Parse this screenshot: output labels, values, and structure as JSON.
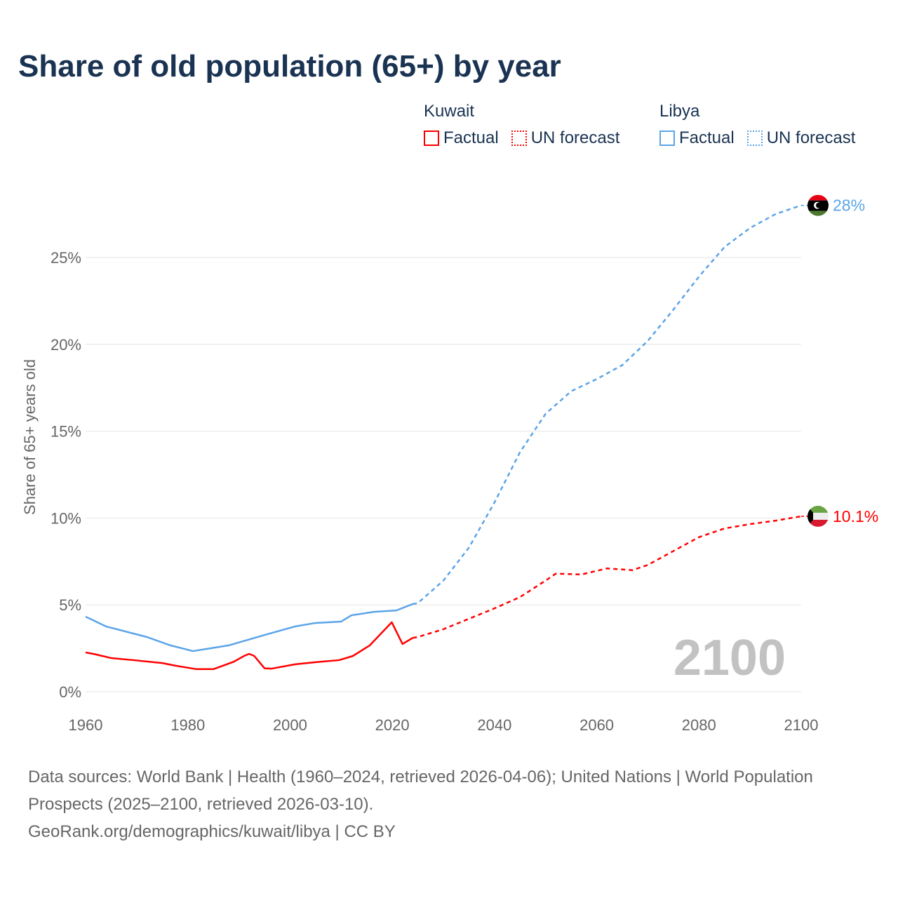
{
  "chart_data": {
    "type": "line",
    "title": "Share of old population (65+) by year",
    "ylabel": "Share of 65+ years old",
    "xlabel": "",
    "xlim": [
      1960,
      2100
    ],
    "ylim": [
      0,
      28
    ],
    "x_ticks": [
      "1960",
      "1980",
      "2000",
      "2020",
      "2040",
      "2060",
      "2080",
      "2100"
    ],
    "y_ticks": [
      "0%",
      "5%",
      "10%",
      "15%",
      "20%",
      "25%"
    ],
    "grid": true,
    "year_label": "2100",
    "legend": {
      "groups": [
        {
          "name": "Kuwait",
          "items": [
            "Factual",
            "UN forecast"
          ]
        },
        {
          "name": "Libya",
          "items": [
            "Factual",
            "UN forecast"
          ]
        }
      ],
      "placement": "top-right"
    },
    "series": [
      {
        "name": "Kuwait",
        "color": "#ff0000",
        "end_label": "10.1%",
        "factual": [
          [
            1960,
            2.26
          ],
          [
            1961.5,
            2.18
          ],
          [
            1965,
            1.94
          ],
          [
            1969,
            1.83
          ],
          [
            1975,
            1.65
          ],
          [
            1977.6,
            1.5
          ],
          [
            1981.7,
            1.3
          ],
          [
            1985,
            1.3
          ],
          [
            1989,
            1.73
          ],
          [
            1991,
            2.06
          ],
          [
            1992,
            2.18
          ],
          [
            1993,
            2.06
          ],
          [
            1995,
            1.35
          ],
          [
            1996.4,
            1.33
          ],
          [
            2001,
            1.58
          ],
          [
            2005,
            1.7
          ],
          [
            2009.6,
            1.82
          ],
          [
            2012.3,
            2.06
          ],
          [
            2015.6,
            2.67
          ],
          [
            2019.9,
            4.0
          ],
          [
            2022,
            2.75
          ],
          [
            2024,
            3.1
          ]
        ],
        "forecast": [
          [
            2024,
            3.1
          ],
          [
            2025,
            3.15
          ],
          [
            2030,
            3.6
          ],
          [
            2035,
            4.2
          ],
          [
            2040,
            4.8
          ],
          [
            2045,
            5.45
          ],
          [
            2050,
            6.4
          ],
          [
            2052,
            6.8
          ],
          [
            2057,
            6.75
          ],
          [
            2062,
            7.1
          ],
          [
            2067,
            7.0
          ],
          [
            2070,
            7.3
          ],
          [
            2075,
            8.1
          ],
          [
            2080,
            8.9
          ],
          [
            2085,
            9.4
          ],
          [
            2090,
            9.65
          ],
          [
            2095,
            9.85
          ],
          [
            2100,
            10.1
          ]
        ]
      },
      {
        "name": "Libya",
        "color": "#5ba4e8",
        "end_label": "28%",
        "factual": [
          [
            1960,
            4.32
          ],
          [
            1964,
            3.76
          ],
          [
            1972,
            3.15
          ],
          [
            1976.6,
            2.67
          ],
          [
            1981,
            2.34
          ],
          [
            1984.4,
            2.5
          ],
          [
            1988,
            2.67
          ],
          [
            1996,
            3.35
          ],
          [
            2001,
            3.76
          ],
          [
            2005,
            3.96
          ],
          [
            2010,
            4.04
          ],
          [
            2012,
            4.4
          ],
          [
            2016.4,
            4.6
          ],
          [
            2020.8,
            4.68
          ],
          [
            2024,
            5.05
          ]
        ],
        "forecast": [
          [
            2024,
            5.05
          ],
          [
            2025,
            5.1
          ],
          [
            2030,
            6.4
          ],
          [
            2035,
            8.3
          ],
          [
            2040,
            10.9
          ],
          [
            2045,
            13.8
          ],
          [
            2050,
            16.0
          ],
          [
            2055,
            17.3
          ],
          [
            2060,
            18.0
          ],
          [
            2065,
            18.8
          ],
          [
            2070,
            20.2
          ],
          [
            2075,
            22.0
          ],
          [
            2080,
            23.9
          ],
          [
            2085,
            25.6
          ],
          [
            2090,
            26.7
          ],
          [
            2095,
            27.5
          ],
          [
            2100,
            28.0
          ]
        ]
      }
    ]
  },
  "source": {
    "line1": "Data sources: World Bank | Health (1960–2024, retrieved 2026-04-06); United Nations | World Population Prospects (2025–2100, retrieved 2026-03-10).",
    "line2": "GeoRank.org/demographics/kuwait/libya | CC BY"
  }
}
